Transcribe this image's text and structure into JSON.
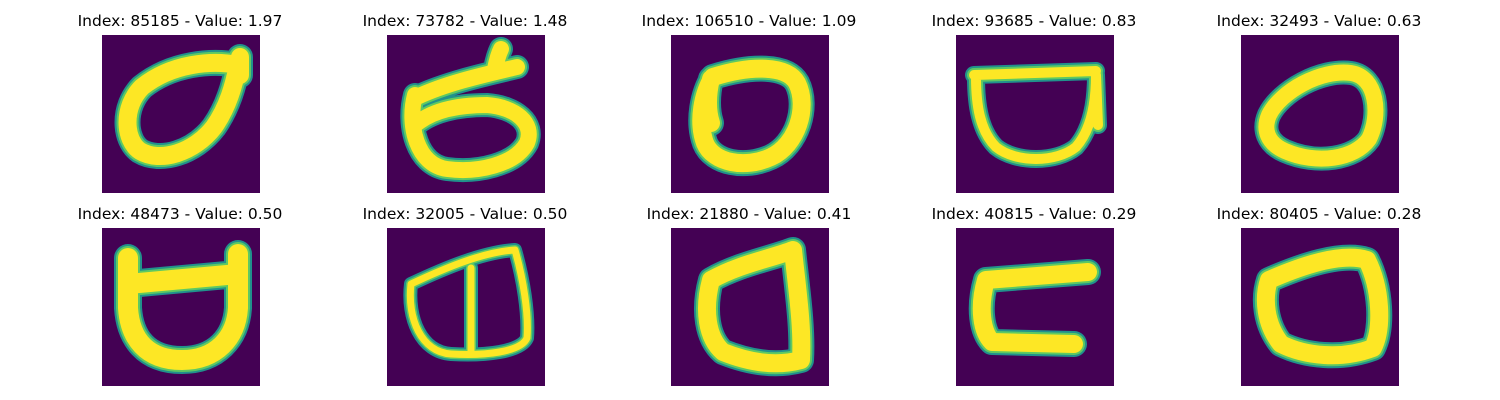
{
  "colors": {
    "background": "#440154",
    "stroke_outer": "#21918c",
    "stroke_mid": "#5ec962",
    "stroke_inner": "#fde725"
  },
  "panels": [
    {
      "title": "Index: 85185 - Value: 1.97"
    },
    {
      "title": "Index: 73782 - Value: 1.48"
    },
    {
      "title": "Index: 106510 - Value: 1.09"
    },
    {
      "title": "Index: 93685 - Value: 0.83"
    },
    {
      "title": "Index: 32493 - Value: 0.63"
    },
    {
      "title": "Index: 48473 - Value: 0.50"
    },
    {
      "title": "Index: 32005 - Value: 0.50"
    },
    {
      "title": "Index: 21880 - Value: 0.41"
    },
    {
      "title": "Index: 40815 - Value: 0.29"
    },
    {
      "title": "Index: 80405 - Value: 0.28"
    }
  ]
}
